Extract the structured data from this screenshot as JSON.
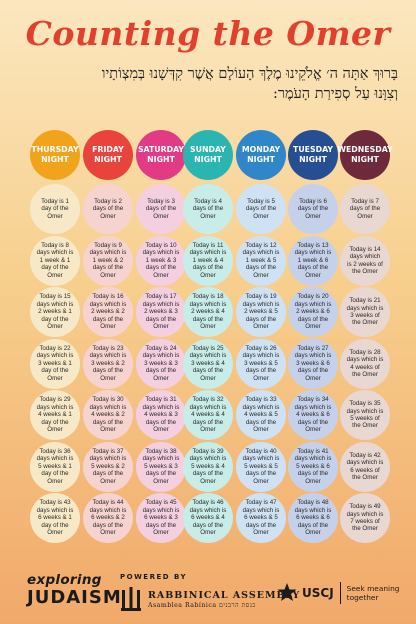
{
  "title": "Counting the Omer",
  "blessing": {
    "line1": "בָּרוּךְ אַתָּה ה׳ אֱלֹקֵינוּ מֶלֶךְ הָעוֹלָם אֲשֶׁר קִדְּשָׁנוּ בְּמִצְוֹתָיו",
    "line2": "וְצִוָּנוּ עַל סְפִירַת הָעֹמֶר:"
  },
  "nights": [
    {
      "label": "THURSDAY\nNIGHT",
      "color": "#f2a31c"
    },
    {
      "label": "FRIDAY\nNIGHT",
      "color": "#e8443b"
    },
    {
      "label": "SATURDAY\nNIGHT",
      "color": "#e23a85"
    },
    {
      "label": "SUNDAY\nNIGHT",
      "color": "#2bb5b0"
    },
    {
      "label": "MONDAY\nNIGHT",
      "color": "#2f86c9"
    },
    {
      "label": "TUESDAY\nNIGHT",
      "color": "#254f92"
    },
    {
      "label": "WEDNESDAY\nNIGHT",
      "color": "#6e2a3b"
    }
  ],
  "day_colors": {
    "fill": [
      "#f7e9c8",
      "#f7d3cf",
      "#f4cfe0",
      "#c8ece8",
      "#cfe2f3",
      "#c5d1ea",
      "#e9d7d2"
    ]
  },
  "weeks": [
    [
      "Today is 1\nday of the\nOmer",
      "Today is 2\ndays of the\nOmer",
      "Today is 3\ndays of the\nOmer",
      "Today is 4\ndays of the\nOmer",
      "Today is 5\ndays of the\nOmer",
      "Today is 6\ndays of the\nOmer",
      "Today is 7\ndays of the\nOmer"
    ],
    [
      "Today is 8\ndays which is\n1 week & 1\nday of the\nOmer",
      "Today is 9\ndays which is\n1 week & 2\ndays of the\nOmer",
      "Today is 10\ndays which is\n1 week & 3\ndays of the\nOmer",
      "Today is 11\ndays which is\n1 week & 4\ndays of the\nOmer",
      "Today is 12\ndays which is\n1 week & 5\ndays of the\nOmer",
      "Today is 13\ndays which is\n1 week & 6\ndays of the\nOmer",
      "Today is 14\ndays which\nis 2 weeks of\nthe Omer"
    ],
    [
      "Today is 15\ndays which is\n2 weeks & 1\nday of the\nOmer",
      "Today is 16\ndays which is\n2 weeks & 2\ndays of the\nOmer",
      "Today is 17\ndays which is\n2 weeks & 3\ndays of the\nOmer",
      "Today is 18\ndays which is\n2 weeks & 4\ndays of the\nOmer",
      "Today is 19\ndays which is\n2 weeks & 5\ndays of the\nOmer",
      "Today is 20\ndays which is\n2 weeks & 6\ndays of the\nOmer",
      "Today is 21\ndays which is\n3 weeks of\nthe Omer"
    ],
    [
      "Today is 22\ndays which is\n3 weeks & 1\nday of the\nOmer",
      "Today is 23\ndays which is\n3 weeks & 2\ndays of the\nOmer",
      "Today is 24\ndays which is\n3 weeks & 3\ndays of the\nOmer",
      "Today is 25\ndays which is\n3 weeks & 4\ndays of the\nOmer",
      "Today is 26\ndays which is\n3 weeks & 5\ndays of the\nOmer",
      "Today is 27\ndays which is\n3 weeks & 6\ndays of the\nOmer",
      "Today is 28\ndays which is\n4 weeks of\nthe Omer"
    ],
    [
      "Today is 29\ndays which is\n4 weeks & 1\nday of the\nOmer",
      "Today is 30\ndays which is\n4 weeks & 2\ndays of the\nOmer",
      "Today is 31\ndays which is\n4 weeks & 3\ndays of the\nOmer",
      "Today is 32\ndays which is\n4 weeks & 4\ndays of the\nOmer",
      "Today is 33\ndays which is\n4 weeks & 5\ndays of the\nOmer",
      "Today is 34\ndays which is\n4 weeks & 6\ndays of the\nOmer",
      "Today is 35\ndays which is\n5 weeks of\nthe Omer"
    ],
    [
      "Today is 36\ndays which is\n5 weeks & 1\nday of the\nOmer",
      "Today is 37\ndays which is\n5 weeks & 2\ndays of the\nOmer",
      "Today is 38\ndays which is\n5 weeks & 3\ndays of the\nOmer",
      "Today is 39\ndays which is\n5 weeks & 4\ndays of the\nOmer",
      "Today is 40\ndays which is\n5 weeks & 5\ndays of the\nOmer",
      "Today is 41\ndays which is\n5 weeks & 6\ndays of the\nOmer",
      "Today is 42\ndays which is\n6 weeks of\nthe Omer"
    ],
    [
      "Today is 43\ndays which is\n6 weeks & 1\nday of the\nOmer",
      "Today is 44\ndays which is\n6 weeks & 2\ndays of the\nOmer",
      "Today is 45\ndays which is\n6 weeks & 3\ndays of the\nOmer",
      "Today is 46\ndays which is\n6 weeks & 4\ndays of the\nOmer",
      "Today is 47\ndays which is\n6 weeks & 5\ndays of the\nOmer",
      "Today is 48\ndays which is\n6 weeks & 6\ndays of the\nOmer",
      "Today is 49\ndays which is\n7 weeks of\nthe Omer"
    ]
  ],
  "footer": {
    "exploring": "exploring",
    "judaism": "JUDAISM",
    "powered_by": "POWERED BY",
    "ra_name": "RABBINICAL ASSEMBLY",
    "ra_sub": "Asamblea Rabínica  כנסת הרבנים",
    "uscj_name": "USCJ",
    "uscj_tagline": "Seek meaning together"
  }
}
